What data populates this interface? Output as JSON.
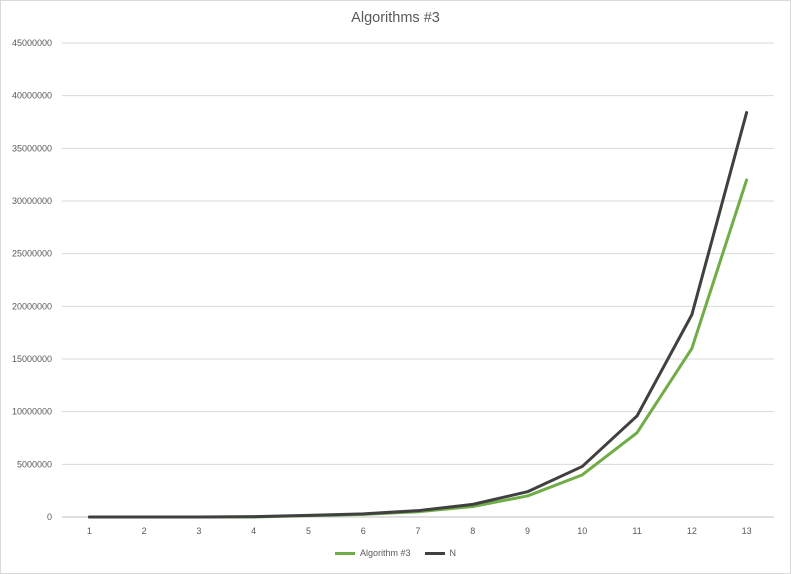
{
  "chart_data": {
    "type": "line",
    "title": "Algorithms #3",
    "xlabel": "",
    "ylabel": "",
    "categories": [
      "1",
      "2",
      "3",
      "4",
      "5",
      "6",
      "7",
      "8",
      "9",
      "10",
      "11",
      "12",
      "13"
    ],
    "ylim": [
      0,
      45000000
    ],
    "yticks": [
      0,
      5000000,
      10000000,
      15000000,
      20000000,
      25000000,
      30000000,
      35000000,
      40000000,
      45000000
    ],
    "grid": true,
    "legend_position": "bottom",
    "series": [
      {
        "name": "Algorithm #3",
        "color": "#70ad47",
        "values": [
          0,
          0,
          0,
          0,
          125000,
          250000,
          500000,
          1000000,
          2000000,
          4000000,
          8000000,
          16000000,
          32000000
        ]
      },
      {
        "name": "N",
        "color": "#404040",
        "values": [
          0,
          0,
          0,
          37500,
          150000,
          300000,
          600000,
          1200000,
          2400000,
          4800000,
          9600000,
          19200000,
          38400000
        ]
      }
    ]
  }
}
